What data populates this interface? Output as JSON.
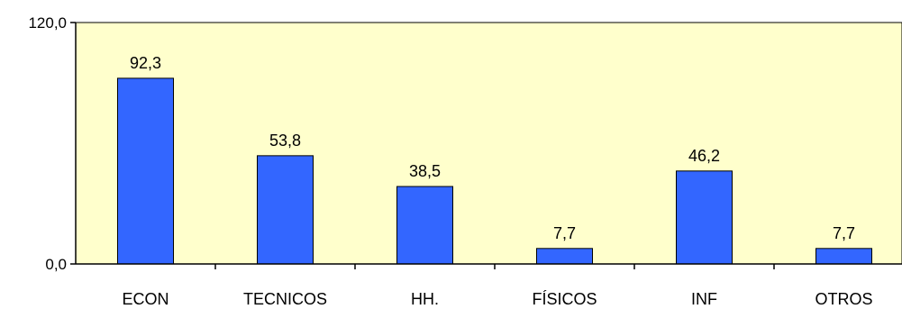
{
  "chart_data": {
    "type": "bar",
    "categories": [
      "ECON",
      "TECNICOS",
      "HH.",
      "FÍSICOS",
      "INF",
      "OTROS"
    ],
    "values": [
      92.3,
      53.8,
      38.5,
      7.7,
      46.2,
      7.7
    ],
    "value_labels": [
      "92,3",
      "53,8",
      "38,5",
      "7,7",
      "46,2",
      "7,7"
    ],
    "ylim": [
      0,
      120
    ],
    "y_tick_labels": [
      "0,0",
      "120,0"
    ],
    "grid": false,
    "legend": "none",
    "colors": {
      "bar_fill": "#3366ff",
      "bar_stroke": "#000000",
      "plot_background": "#ffffcc",
      "axis": "#000000"
    }
  }
}
